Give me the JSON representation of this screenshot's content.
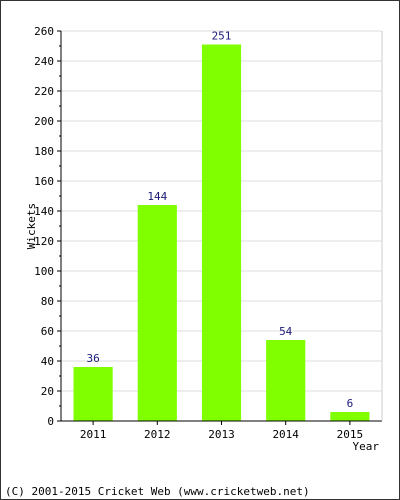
{
  "chart_data": {
    "type": "bar",
    "categories": [
      "2011",
      "2012",
      "2013",
      "2014",
      "2015"
    ],
    "values": [
      36,
      144,
      251,
      54,
      6
    ],
    "title": "",
    "xlabel": "Year",
    "ylabel": "Wickets",
    "ylim": [
      0,
      260
    ],
    "yticks": [
      0,
      20,
      40,
      60,
      80,
      100,
      120,
      140,
      160,
      180,
      200,
      220,
      240,
      260
    ],
    "grid": true,
    "legend": "none",
    "bar_color": "#80ff00",
    "label_color": "#1a1a7a"
  },
  "footer": {
    "text": "(C) 2001-2015 Cricket Web (www.cricketweb.net)"
  }
}
